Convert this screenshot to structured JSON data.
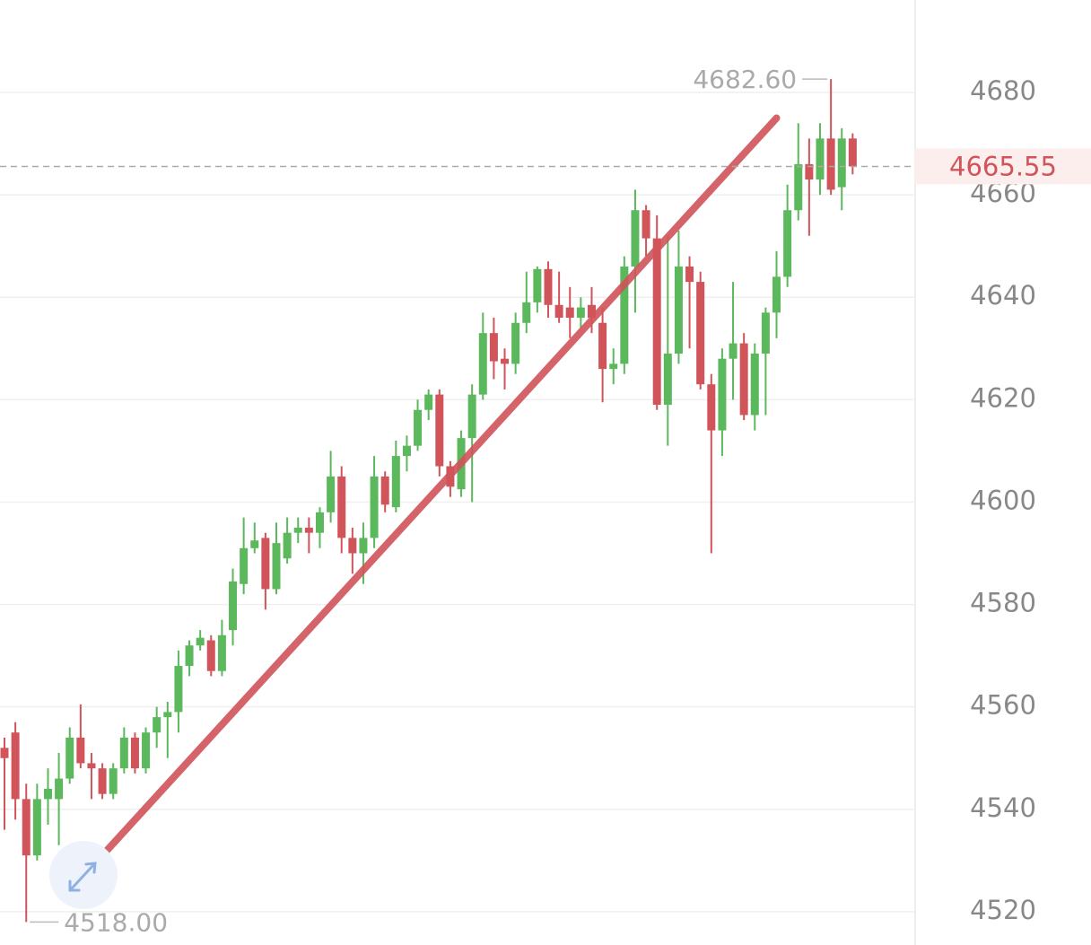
{
  "chart_data": {
    "type": "candlestick",
    "open": [
      4552,
      4555,
      4542,
      4531,
      4542,
      4542,
      4546,
      4554,
      4549,
      4548,
      4543,
      4548,
      4554,
      4548,
      4555,
      4558,
      4559,
      4568,
      4572,
      4573,
      4567,
      4575,
      4584,
      4591,
      4593,
      4583,
      4589,
      4594,
      4595,
      4594,
      4598,
      4605,
      4593,
      4590,
      4593,
      4605,
      4599,
      4609,
      4611,
      4618,
      4621,
      4607,
      4602.5,
      4612.5,
      4621,
      4633,
      4628,
      4627,
      4635,
      4639,
      4645.5,
      4638.5,
      4638,
      4636,
      4638.5,
      4635,
      4626,
      4627,
      4646,
      4657,
      4651.5,
      4619,
      4629,
      4646,
      4643,
      4623,
      4614,
      4628,
      4631,
      4617,
      4629,
      4637,
      4644,
      4657,
      4666,
      4663,
      4671,
      4661.5,
      4671
    ],
    "high": [
      4554,
      4557,
      4545,
      4545,
      4548,
      4551,
      4556,
      4560.5,
      4551,
      4549,
      4549,
      4556,
      4555,
      4556,
      4560,
      4561,
      4571,
      4573,
      4575,
      4574,
      4577,
      4587,
      4597,
      4596,
      4594,
      4596,
      4597,
      4597,
      4597,
      4599,
      4610,
      4607,
      4595,
      4596,
      4609,
      4606,
      4612,
      4613,
      4620,
      4622,
      4622,
      4608,
      4614,
      4623,
      4637,
      4636,
      4630,
      4637,
      4645,
      4646,
      4647,
      4645,
      4642,
      4640,
      4642,
      4638,
      4630,
      4648,
      4661,
      4658,
      4656,
      4652,
      4653,
      4648,
      4645,
      4625,
      4630,
      4643,
      4633,
      4631,
      4638,
      4649,
      4662,
      4674,
      4671,
      4674,
      4682.6,
      4673,
      4672
    ],
    "low": [
      4536,
      4538,
      4518,
      4530,
      4537,
      4533,
      4545,
      4548,
      4542,
      4542,
      4542,
      4547,
      4547,
      4547,
      4552,
      4550,
      4555,
      4566,
      4571,
      4566,
      4566,
      4572,
      4582,
      4590,
      4579,
      4582,
      4588,
      4592,
      4590,
      4591,
      4596,
      4590,
      4586,
      4584,
      4591,
      4598,
      4598,
      4606,
      4610,
      4616,
      4605,
      4601,
      4601,
      4600,
      4620,
      4624,
      4622,
      4625,
      4633,
      4637,
      4636,
      4635,
      4632,
      4634,
      4633,
      4619.5,
      4623,
      4625,
      4637,
      4648,
      4618,
      4611,
      4627,
      4630,
      4622,
      4590,
      4609,
      4620,
      4616,
      4614,
      4617,
      4632,
      4642,
      4655,
      4652,
      4660,
      4660,
      4657,
      4664
    ],
    "close": [
      4550,
      4542,
      4531,
      4542,
      4544,
      4546,
      4554,
      4549,
      4548,
      4543,
      4548,
      4554,
      4548,
      4555,
      4558,
      4559,
      4568,
      4572,
      4573.5,
      4567,
      4574,
      4584.5,
      4591,
      4592.5,
      4583,
      4592,
      4594,
      4595,
      4594,
      4598,
      4605,
      4593,
      4590,
      4593,
      4605,
      4599.5,
      4609,
      4611,
      4618,
      4621,
      4607,
      4603,
      4612.5,
      4621,
      4633,
      4627.5,
      4627,
      4635,
      4639,
      4645.5,
      4638.5,
      4636,
      4636,
      4638,
      4636,
      4626,
      4627,
      4646,
      4657,
      4651.5,
      4619,
      4629,
      4646,
      4643,
      4623,
      4614,
      4628,
      4631,
      4617,
      4629,
      4637,
      4644,
      4657,
      4666,
      4663,
      4671,
      4661,
      4671,
      4665.55
    ],
    "up_color": "#5cb85c",
    "down_color": "#d0545a",
    "ylim": [
      4513.5,
      4698.05
    ],
    "yticks": [
      4520,
      4540,
      4560,
      4580,
      4600,
      4620,
      4640,
      4660,
      4680
    ],
    "grid": true,
    "max_label": "4682.60",
    "min_label": "4518.00",
    "last_label": "4665.55",
    "trendline": {
      "start": [
        9,
        4531
      ],
      "end": [
        71,
        4675
      ],
      "color": "#d0545a"
    }
  }
}
